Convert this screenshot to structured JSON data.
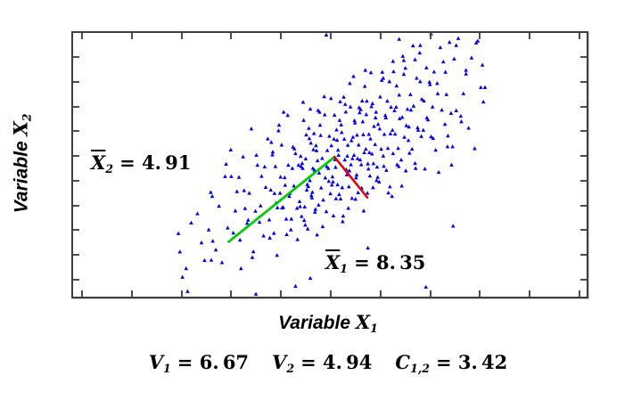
{
  "axes": {
    "x_label": {
      "text": "Variable",
      "sym": "X",
      "sub": "1"
    },
    "y_label": {
      "text": "Variable",
      "sym": "X",
      "sub": "2"
    }
  },
  "annotations": {
    "mean_x2": {
      "sym": "X",
      "sub": "2",
      "eq": "= 4. 91"
    },
    "mean_x1": {
      "sym": "X",
      "sub": "1",
      "eq": "= 8. 35"
    }
  },
  "stats": [
    {
      "sym": "V",
      "sub": "1",
      "eq": "= 6. 67"
    },
    {
      "sym": "V",
      "sub": "2",
      "eq": "= 4. 94"
    },
    {
      "sym": "C",
      "sub": "1,2",
      "eq": "= 3. 42"
    }
  ],
  "colors": {
    "marker": "#0000EE",
    "principal_axis": "#00CC00",
    "secondary_axis": "#EE0000",
    "frame": "#3f3f3f",
    "text": "#000000"
  },
  "chart_data": {
    "type": "scatter",
    "title": "",
    "xlabel": "Variable X1",
    "ylabel": "Variable X2",
    "tick_labels_shown": false,
    "n_points": 352,
    "summary": {
      "mean_x1": 8.35,
      "mean_x2": 4.91,
      "var_x1": 6.67,
      "var_x2": 4.94,
      "cov_1_2": 3.42
    },
    "x_tick_pct": [
      1.7,
      11.4,
      21.1,
      30.8,
      40.5,
      50.2,
      59.9,
      69.6,
      79.2,
      88.9,
      98.6
    ],
    "y_tick_pct": [
      9.1,
      18.5,
      27.9,
      37.2,
      46.6,
      56.0,
      65.4,
      74.8,
      84.2,
      93.6
    ],
    "lines": [
      {
        "name": "principal-axis-line",
        "color": "#00CC00",
        "from_pct": [
          30.3,
          79.2
        ],
        "to_pct": [
          50.9,
          47.0
        ],
        "width": 2.8
      },
      {
        "name": "secondary-axis-line",
        "color": "#EE0000",
        "from_pct": [
          50.9,
          47.0
        ],
        "to_pct": [
          57.3,
          62.4
        ],
        "width": 2.6
      }
    ],
    "points_pct": [
      [
        49.3,
        0.7
      ],
      [
        69.7,
        0.3
      ],
      [
        63.5,
        2.3
      ],
      [
        78.5,
        3.7
      ],
      [
        74.6,
        4.7
      ],
      [
        67.6,
        4.7
      ],
      [
        62.3,
        10.7
      ],
      [
        66.6,
        10.1
      ],
      [
        60.4,
        17.1
      ],
      [
        76.5,
        14.1
      ],
      [
        75.6,
        33.6
      ],
      [
        73.7,
        50.0
      ],
      [
        74.0,
        73.2
      ],
      [
        68.7,
        96.3
      ],
      [
        57.4,
        81.5
      ],
      [
        46.2,
        93.0
      ],
      [
        43.3,
        96.0
      ],
      [
        35.6,
        99.0
      ],
      [
        27.2,
        78.9
      ],
      [
        25.6,
        86.2
      ],
      [
        22.0,
        89.3
      ],
      [
        21.3,
        92.6
      ],
      [
        22.3,
        98.0
      ],
      [
        20.8,
        83.0
      ],
      [
        23.0,
        72.0
      ],
      [
        26.8,
        60.4
      ],
      [
        29.8,
        49.7
      ],
      [
        30.8,
        54.4
      ],
      [
        64.4,
        10.4
      ],
      [
        72.5,
        14.8
      ],
      [
        20.5,
        76.0
      ],
      [
        24.2,
        68.5
      ],
      [
        25.0,
        79.5
      ],
      [
        26.4,
        74.6
      ],
      [
        27.1,
        61.9
      ],
      [
        27.8,
        82.2
      ],
      [
        28.4,
        65.6
      ],
      [
        29.0,
        87.0
      ],
      [
        29.6,
        54.4
      ],
      [
        30.1,
        73.9
      ],
      [
        30.7,
        44.3
      ],
      [
        31.2,
        75.8
      ],
      [
        31.6,
        67.4
      ],
      [
        31.9,
        60.1
      ],
      [
        26.9,
        86.1
      ],
      [
        32.3,
        54.7
      ],
      [
        32.7,
        89.3
      ],
      [
        33.1,
        46.9
      ],
      [
        33.5,
        66.5
      ],
      [
        33.9,
        72.1
      ],
      [
        34.3,
        60.7
      ],
      [
        34.7,
        36.3
      ],
      [
        35.1,
        82.9
      ],
      [
        35.5,
        67.5
      ],
      [
        35.9,
        50.1
      ],
      [
        36.3,
        71.7
      ],
      [
        36.7,
        54.3
      ],
      [
        37.1,
        76.9
      ],
      [
        37.5,
        58.5
      ],
      [
        37.9,
        40.1
      ],
      [
        32.5,
        78.5
      ],
      [
        33.3,
        59.7
      ],
      [
        34.1,
        70.9
      ],
      [
        34.9,
        85.1
      ],
      [
        35.7,
        46.3
      ],
      [
        36.5,
        65.5
      ],
      [
        37.3,
        50.7
      ],
      [
        38.2,
        70.8
      ],
      [
        38.5,
        59.5
      ],
      [
        38.8,
        46.2
      ],
      [
        39.1,
        75.9
      ],
      [
        39.4,
        50.6
      ],
      [
        39.7,
        84.3
      ],
      [
        40.0,
        37.0
      ],
      [
        40.3,
        60.7
      ],
      [
        40.6,
        42.4
      ],
      [
        40.9,
        66.1
      ],
      [
        41.2,
        54.8
      ],
      [
        41.5,
        70.5
      ],
      [
        41.8,
        31.2
      ],
      [
        42.1,
        61.9
      ],
      [
        42.4,
        74.6
      ],
      [
        42.7,
        51.3
      ],
      [
        43.0,
        58.0
      ],
      [
        43.3,
        45.7
      ],
      [
        43.6,
        66.4
      ],
      [
        43.9,
        50.1
      ],
      [
        38.3,
        77.7
      ],
      [
        38.9,
        45.1
      ],
      [
        39.5,
        64.5
      ],
      [
        40.1,
        34.9
      ],
      [
        40.7,
        66.3
      ],
      [
        41.3,
        57.7
      ],
      [
        41.9,
        50.1
      ],
      [
        42.5,
        70.5
      ],
      [
        43.1,
        43.9
      ],
      [
        43.7,
        78.3
      ],
      [
        38.6,
        41.4
      ],
      [
        39.2,
        60.8
      ],
      [
        39.8,
        66.2
      ],
      [
        40.4,
        54.6
      ],
      [
        41.0,
        30.0
      ],
      [
        41.6,
        76.4
      ],
      [
        42.2,
        60.8
      ],
      [
        42.8,
        43.2
      ],
      [
        44.1,
        63.9
      ],
      [
        44.3,
        46.7
      ],
      [
        44.5,
        69.5
      ],
      [
        44.7,
        51.3
      ],
      [
        44.9,
        33.1
      ],
      [
        45.1,
        65.9
      ],
      [
        45.3,
        47.7
      ],
      [
        45.5,
        59.5
      ],
      [
        45.7,
        74.3
      ],
      [
        45.9,
        36.1
      ],
      [
        46.1,
        55.9
      ],
      [
        46.3,
        41.7
      ],
      [
        46.5,
        62.5
      ],
      [
        46.7,
        51.3
      ],
      [
        46.9,
        38.1
      ],
      [
        47.1,
        67.9
      ],
      [
        47.3,
        42.7
      ],
      [
        47.5,
        76.5
      ],
      [
        47.7,
        29.3
      ],
      [
        47.9,
        53.1
      ],
      [
        48.1,
        34.9
      ],
      [
        48.3,
        58.7
      ],
      [
        48.5,
        47.5
      ],
      [
        48.7,
        63.3
      ],
      [
        48.9,
        24.1
      ],
      [
        49.1,
        54.9
      ],
      [
        49.3,
        67.7
      ],
      [
        49.5,
        44.5
      ],
      [
        49.7,
        51.3
      ],
      [
        49.9,
        39.1
      ],
      [
        44.2,
        65.8
      ],
      [
        44.6,
        49.4
      ],
      [
        45.0,
        71.0
      ],
      [
        45.4,
        38.6
      ],
      [
        45.8,
        58.2
      ],
      [
        46.2,
        28.8
      ],
      [
        46.6,
        60.4
      ],
      [
        47.0,
        52.0
      ],
      [
        47.4,
        44.6
      ],
      [
        47.8,
        65.2
      ],
      [
        48.2,
        38.8
      ],
      [
        48.6,
        73.4
      ],
      [
        49.0,
        31.0
      ],
      [
        49.4,
        50.6
      ],
      [
        49.8,
        56.2
      ],
      [
        44.4,
        50.6
      ],
      [
        44.8,
        26.2
      ],
      [
        45.2,
        72.8
      ],
      [
        45.6,
        57.4
      ],
      [
        46.0,
        40.0
      ],
      [
        46.4,
        61.6
      ],
      [
        46.8,
        44.2
      ],
      [
        47.2,
        66.8
      ],
      [
        47.6,
        48.4
      ],
      [
        48.0,
        30.0
      ],
      [
        50.1,
        60.9
      ],
      [
        50.3,
        42.7
      ],
      [
        50.5,
        54.5
      ],
      [
        50.7,
        69.3
      ],
      [
        50.9,
        31.1
      ],
      [
        51.1,
        50.9
      ],
      [
        51.3,
        36.7
      ],
      [
        51.5,
        57.5
      ],
      [
        51.7,
        46.3
      ],
      [
        51.9,
        33.1
      ],
      [
        52.1,
        62.9
      ],
      [
        52.3,
        37.7
      ],
      [
        52.5,
        71.5
      ],
      [
        52.7,
        24.3
      ],
      [
        52.9,
        48.1
      ],
      [
        53.1,
        29.9
      ],
      [
        53.3,
        53.7
      ],
      [
        53.5,
        42.5
      ],
      [
        53.7,
        58.3
      ],
      [
        53.9,
        19.1
      ],
      [
        54.1,
        49.9
      ],
      [
        54.3,
        62.7
      ],
      [
        54.5,
        39.5
      ],
      [
        54.7,
        46.3
      ],
      [
        54.9,
        34.1
      ],
      [
        55.1,
        54.9
      ],
      [
        55.3,
        38.7
      ],
      [
        55.5,
        60.5
      ],
      [
        55.7,
        28.3
      ],
      [
        55.9,
        48.1
      ],
      [
        50.2,
        24.8
      ],
      [
        50.6,
        56.4
      ],
      [
        51.0,
        48.0
      ],
      [
        51.4,
        40.6
      ],
      [
        51.8,
        61.2
      ],
      [
        52.2,
        34.8
      ],
      [
        52.6,
        69.4
      ],
      [
        53.0,
        27.0
      ],
      [
        53.4,
        46.6
      ],
      [
        53.8,
        52.2
      ],
      [
        54.2,
        40.8
      ],
      [
        54.6,
        16.4
      ],
      [
        55.0,
        63.0
      ],
      [
        55.4,
        47.6
      ],
      [
        55.8,
        30.2
      ],
      [
        50.4,
        57.6
      ],
      [
        50.8,
        40.2
      ],
      [
        51.2,
        62.8
      ],
      [
        51.6,
        44.4
      ],
      [
        52.0,
        26.0
      ],
      [
        52.4,
        58.6
      ],
      [
        52.8,
        40.2
      ],
      [
        53.2,
        51.8
      ],
      [
        53.6,
        66.4
      ],
      [
        54.0,
        28.0
      ],
      [
        54.4,
        47.6
      ],
      [
        54.8,
        33.2
      ],
      [
        55.2,
        53.8
      ],
      [
        55.6,
        42.4
      ],
      [
        56.0,
        29.0
      ],
      [
        56.2,
        58.8
      ],
      [
        56.4,
        33.6
      ],
      [
        56.6,
        67.4
      ],
      [
        56.8,
        20.2
      ],
      [
        57.0,
        44.0
      ],
      [
        57.2,
        25.8
      ],
      [
        57.4,
        49.6
      ],
      [
        57.6,
        38.4
      ],
      [
        57.8,
        54.2
      ],
      [
        58.0,
        15.0
      ],
      [
        58.2,
        45.8
      ],
      [
        58.4,
        58.6
      ],
      [
        58.6,
        35.4
      ],
      [
        58.8,
        42.2
      ],
      [
        59.0,
        30.0
      ],
      [
        59.2,
        50.8
      ],
      [
        59.4,
        34.6
      ],
      [
        59.6,
        56.4
      ],
      [
        59.8,
        24.2
      ],
      [
        60.0,
        44.0
      ],
      [
        60.2,
        14.8
      ],
      [
        60.4,
        46.6
      ],
      [
        60.6,
        38.4
      ],
      [
        60.8,
        31.2
      ],
      [
        61.0,
        52.0
      ],
      [
        61.2,
        25.8
      ],
      [
        61.4,
        60.6
      ],
      [
        61.6,
        18.4
      ],
      [
        61.8,
        38.2
      ],
      [
        56.1,
        49.9
      ],
      [
        56.5,
        38.5
      ],
      [
        56.9,
        14.1
      ],
      [
        57.3,
        60.7
      ],
      [
        57.7,
        45.3
      ],
      [
        58.1,
        27.9
      ],
      [
        58.5,
        49.5
      ],
      [
        58.9,
        32.1
      ],
      [
        59.3,
        54.7
      ],
      [
        59.7,
        36.3
      ],
      [
        60.1,
        17.9
      ],
      [
        60.5,
        50.5
      ],
      [
        60.9,
        32.1
      ],
      [
        61.3,
        43.7
      ],
      [
        61.7,
        58.3
      ],
      [
        56.3,
        25.7
      ],
      [
        56.7,
        45.3
      ],
      [
        57.1,
        30.9
      ],
      [
        57.5,
        51.5
      ],
      [
        57.9,
        40.1
      ],
      [
        58.3,
        26.7
      ],
      [
        59.1,
        55.9
      ],
      [
        61.9,
        28.1
      ],
      [
        62.1,
        61.9
      ],
      [
        62.4,
        14.6
      ],
      [
        62.7,
        38.3
      ],
      [
        63.0,
        20.0
      ],
      [
        63.3,
        43.7
      ],
      [
        63.6,
        32.4
      ],
      [
        63.9,
        48.1
      ],
      [
        64.2,
        8.8
      ],
      [
        64.5,
        39.5
      ],
      [
        64.8,
        52.2
      ],
      [
        65.1,
        28.9
      ],
      [
        65.4,
        35.6
      ],
      [
        65.7,
        23.3
      ],
      [
        66.0,
        44.0
      ],
      [
        66.3,
        27.7
      ],
      [
        66.6,
        49.4
      ],
      [
        66.9,
        17.1
      ],
      [
        67.2,
        36.8
      ],
      [
        67.5,
        7.5
      ],
      [
        67.8,
        39.2
      ],
      [
        62.2,
        36.8
      ],
      [
        62.6,
        29.4
      ],
      [
        63.1,
        49.9
      ],
      [
        63.5,
        23.5
      ],
      [
        64.0,
        58.0
      ],
      [
        64.4,
        15.6
      ],
      [
        64.9,
        35.1
      ],
      [
        65.3,
        40.7
      ],
      [
        65.8,
        29.2
      ],
      [
        66.2,
        4.8
      ],
      [
        66.7,
        51.3
      ],
      [
        67.1,
        35.9
      ],
      [
        67.6,
        18.4
      ],
      [
        62.3,
        45.7
      ],
      [
        62.9,
        28.1
      ],
      [
        63.4,
        50.6
      ],
      [
        64.1,
        31.9
      ],
      [
        64.7,
        13.3
      ],
      [
        65.5,
        45.5
      ],
      [
        67.9,
        25.1
      ],
      [
        68.2,
        36.8
      ],
      [
        68.5,
        51.5
      ],
      [
        68.8,
        13.2
      ],
      [
        69.1,
        32.9
      ],
      [
        69.4,
        18.6
      ],
      [
        69.7,
        39.3
      ],
      [
        70.0,
        28.0
      ],
      [
        70.3,
        14.7
      ],
      [
        70.6,
        44.4
      ],
      [
        70.9,
        19.1
      ],
      [
        71.2,
        52.8
      ],
      [
        71.5,
        5.5
      ],
      [
        71.8,
        29.2
      ],
      [
        72.1,
        10.9
      ],
      [
        72.4,
        34.6
      ],
      [
        72.7,
        23.3
      ],
      [
        73.0,
        39.0
      ],
      [
        73.3,
        3.5
      ],
      [
        73.6,
        30.4
      ],
      [
        73.9,
        43.1
      ],
      [
        68.3,
        25.7
      ],
      [
        68.9,
        32.1
      ],
      [
        69.5,
        19.5
      ],
      [
        70.1,
        39.9
      ],
      [
        71.0,
        23.0
      ],
      [
        72.9,
        43.1
      ],
      [
        74.2,
        9.8
      ],
      [
        74.6,
        29.4
      ],
      [
        75.0,
        2.0
      ],
      [
        75.5,
        31.5
      ],
      [
        76.0,
        23.0
      ],
      [
        76.5,
        15.5
      ],
      [
        77.0,
        36.0
      ],
      [
        77.6,
        9.4
      ],
      [
        78.2,
        43.8
      ],
      [
        78.8,
        3.0
      ],
      [
        79.4,
        20.6
      ],
      [
        79.9,
        26.1
      ],
      [
        80.2,
        20.6
      ],
      [
        79.7,
        12.1
      ]
    ]
  }
}
